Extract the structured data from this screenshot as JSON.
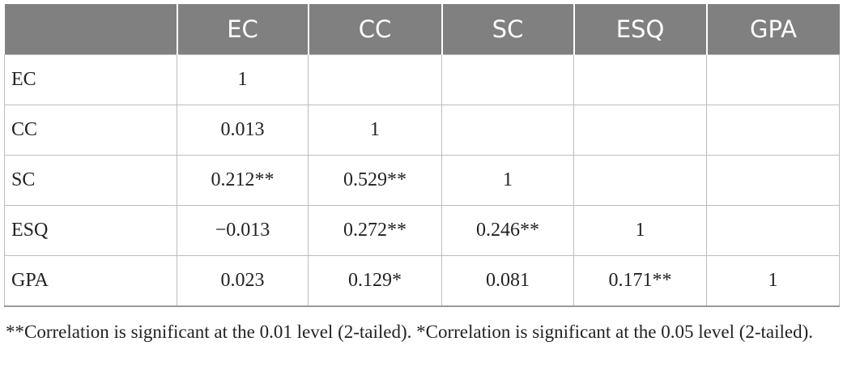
{
  "table": {
    "header": [
      "EC",
      "CC",
      "SC",
      "ESQ",
      "GPA"
    ],
    "rows": [
      {
        "label": "EC",
        "cells": [
          "1"
        ]
      },
      {
        "label": "CC",
        "cells": [
          "0.013",
          "1"
        ]
      },
      {
        "label": "SC",
        "cells": [
          "0.212**",
          "0.529**",
          "1"
        ]
      },
      {
        "label": "ESQ",
        "cells": [
          "−0.013",
          "0.272**",
          "0.246**",
          "1"
        ]
      },
      {
        "label": "GPA",
        "cells": [
          "0.023",
          "0.129*",
          "0.081",
          "0.171**",
          "1"
        ]
      }
    ]
  },
  "footnote": "**Correlation is significant at the 0.01 level (2-tailed). *Correlation is significant at the 0.05 level (2-tailed)."
}
